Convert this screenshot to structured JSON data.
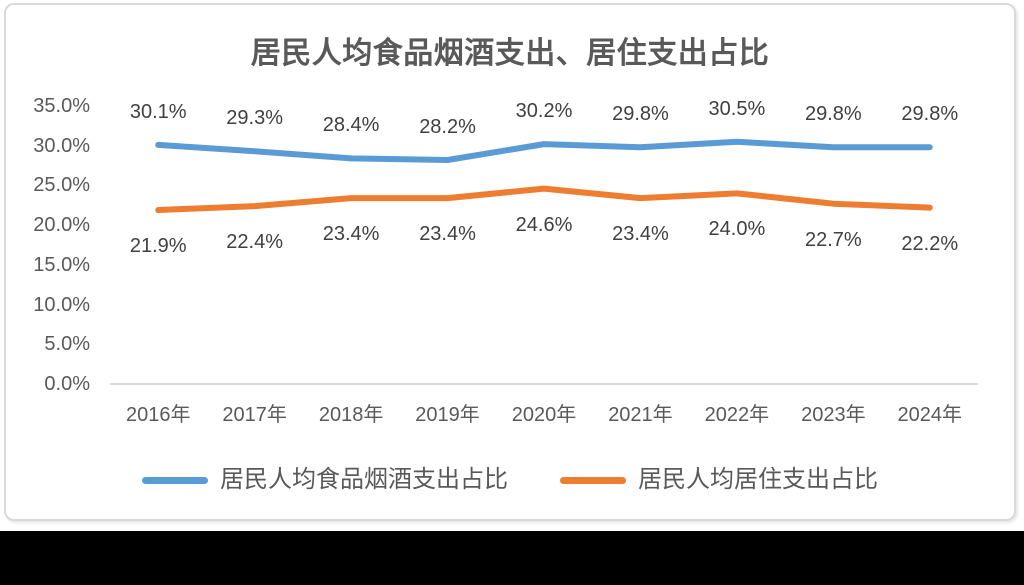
{
  "chart_data": {
    "type": "line",
    "title": "居民人均食品烟酒支出、居住支出占比",
    "categories": [
      "2016年",
      "2017年",
      "2018年",
      "2019年",
      "2020年",
      "2021年",
      "2022年",
      "2023年",
      "2024年"
    ],
    "series": [
      {
        "name": "居民人均食品烟酒支出占比",
        "color": "#5B9BD5",
        "values": [
          30.1,
          29.3,
          28.4,
          28.2,
          30.2,
          29.8,
          30.5,
          29.8,
          29.8
        ],
        "point_labels": [
          "30.1%",
          "29.3%",
          "28.4%",
          "28.2%",
          "30.2%",
          "29.8%",
          "30.5%",
          "29.8%",
          "29.8%"
        ],
        "label_position": "above"
      },
      {
        "name": "居民人均居住支出占比",
        "color": "#ED7D31",
        "values": [
          21.9,
          22.4,
          23.4,
          23.4,
          24.6,
          23.4,
          24.0,
          22.7,
          22.2
        ],
        "point_labels": [
          "21.9%",
          "22.4%",
          "23.4%",
          "23.4%",
          "24.6%",
          "23.4%",
          "24.0%",
          "22.7%",
          "22.2%"
        ],
        "label_position": "below"
      }
    ],
    "ylim": [
      0,
      35
    ],
    "ytick_step": 5,
    "ytick_labels": [
      "0.0%",
      "5.0%",
      "10.0%",
      "15.0%",
      "20.0%",
      "25.0%",
      "30.0%",
      "35.0%"
    ],
    "grid": false,
    "legend_position": "bottom",
    "axis_line_color": "#D9D9D9",
    "text_color_axis": "#595959",
    "text_color_labels": "#404040"
  }
}
